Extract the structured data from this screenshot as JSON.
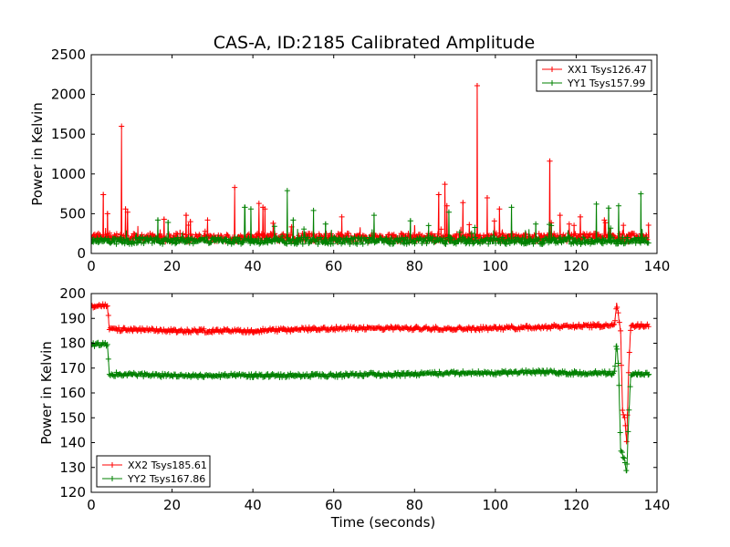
{
  "figure": {
    "title": "CAS-A, ID:2185 Calibrated Amplitude"
  },
  "chart_data": [
    {
      "type": "line",
      "title": "CAS-A, ID:2185 Calibrated Amplitude",
      "xlabel": "",
      "ylabel": "Power in Kelvin",
      "xlim": [
        0,
        140
      ],
      "ylim": [
        0,
        2500
      ],
      "xticks": [
        0,
        20,
        40,
        60,
        80,
        100,
        120,
        140
      ],
      "yticks": [
        0,
        500,
        1000,
        1500,
        2000,
        2500
      ],
      "legend_position": "top-right",
      "grid": false,
      "series": [
        {
          "name": "XX1 Tsys126.47",
          "color": "#ff0000",
          "marker": "+",
          "baseline": 200,
          "x_range": [
            0,
            138
          ],
          "spikes": [
            {
              "x": 3,
              "y": 740
            },
            {
              "x": 4,
              "y": 500
            },
            {
              "x": 7.5,
              "y": 1600
            },
            {
              "x": 8.5,
              "y": 560
            },
            {
              "x": 9,
              "y": 520
            },
            {
              "x": 18,
              "y": 430
            },
            {
              "x": 23.5,
              "y": 480
            },
            {
              "x": 24.5,
              "y": 400
            },
            {
              "x": 35.5,
              "y": 830
            },
            {
              "x": 41.5,
              "y": 630
            },
            {
              "x": 42.5,
              "y": 580
            },
            {
              "x": 43,
              "y": 560
            },
            {
              "x": 45,
              "y": 380
            },
            {
              "x": 62,
              "y": 460
            },
            {
              "x": 80,
              "y": 350
            },
            {
              "x": 86,
              "y": 740
            },
            {
              "x": 87.5,
              "y": 870
            },
            {
              "x": 88,
              "y": 600
            },
            {
              "x": 92,
              "y": 640
            },
            {
              "x": 95.5,
              "y": 2110
            },
            {
              "x": 98,
              "y": 700
            },
            {
              "x": 101,
              "y": 560
            },
            {
              "x": 113.5,
              "y": 1160
            },
            {
              "x": 116,
              "y": 480
            },
            {
              "x": 121,
              "y": 460
            },
            {
              "x": 127,
              "y": 420
            }
          ]
        },
        {
          "name": "YY1 Tsys157.99",
          "color": "#008000",
          "marker": "+",
          "baseline": 160,
          "x_range": [
            0,
            138
          ],
          "spikes": [
            {
              "x": 16.5,
              "y": 420
            },
            {
              "x": 19,
              "y": 390
            },
            {
              "x": 38,
              "y": 580
            },
            {
              "x": 39.5,
              "y": 560
            },
            {
              "x": 48.5,
              "y": 790
            },
            {
              "x": 50,
              "y": 420
            },
            {
              "x": 55,
              "y": 540
            },
            {
              "x": 58,
              "y": 370
            },
            {
              "x": 70,
              "y": 480
            },
            {
              "x": 79,
              "y": 410
            },
            {
              "x": 88.5,
              "y": 520
            },
            {
              "x": 104,
              "y": 580
            },
            {
              "x": 110,
              "y": 370
            },
            {
              "x": 125,
              "y": 620
            },
            {
              "x": 128,
              "y": 570
            },
            {
              "x": 130.5,
              "y": 600
            },
            {
              "x": 136,
              "y": 750
            }
          ]
        }
      ]
    },
    {
      "type": "line",
      "title": "",
      "xlabel": "Time (seconds)",
      "ylabel": "Power in Kelvin",
      "xlim": [
        0,
        140
      ],
      "ylim": [
        120,
        200
      ],
      "xticks": [
        0,
        20,
        40,
        60,
        80,
        100,
        120,
        140
      ],
      "yticks": [
        120,
        130,
        140,
        150,
        160,
        170,
        180,
        190,
        200
      ],
      "legend_position": "bottom-left",
      "grid": false,
      "series": [
        {
          "name": "XX2 Tsys185.61",
          "color": "#ff0000",
          "marker": "+",
          "x": [
            0,
            4,
            4.5,
            10,
            20,
            30,
            40,
            50,
            60,
            70,
            80,
            90,
            100,
            110,
            120,
            125,
            129.5,
            130,
            131,
            131.5,
            132,
            132.5,
            133,
            133.5,
            134,
            135,
            138
          ],
          "y": [
            195,
            195,
            185.5,
            185.5,
            185,
            185,
            185,
            185.5,
            186,
            186,
            186,
            186,
            186,
            186.5,
            187,
            187,
            187.5,
            196,
            185,
            152,
            150,
            140,
            170,
            187,
            187,
            187,
            187
          ]
        },
        {
          "name": "YY2 Tsys167.86",
          "color": "#008000",
          "marker": "+",
          "x": [
            0,
            4,
            4.5,
            10,
            20,
            30,
            40,
            50,
            60,
            70,
            80,
            90,
            100,
            110,
            120,
            125,
            129.5,
            130,
            130.5,
            131,
            131.5,
            132,
            132.5,
            133,
            133.5,
            134,
            135,
            138
          ],
          "y": [
            179.5,
            179.5,
            167.5,
            167.5,
            167,
            167,
            167,
            167,
            167,
            167.5,
            167.5,
            168,
            168,
            168.5,
            168,
            168,
            168,
            180,
            170,
            137,
            135,
            133,
            128,
            150,
            167,
            167.5,
            168,
            167.5
          ]
        }
      ]
    }
  ]
}
